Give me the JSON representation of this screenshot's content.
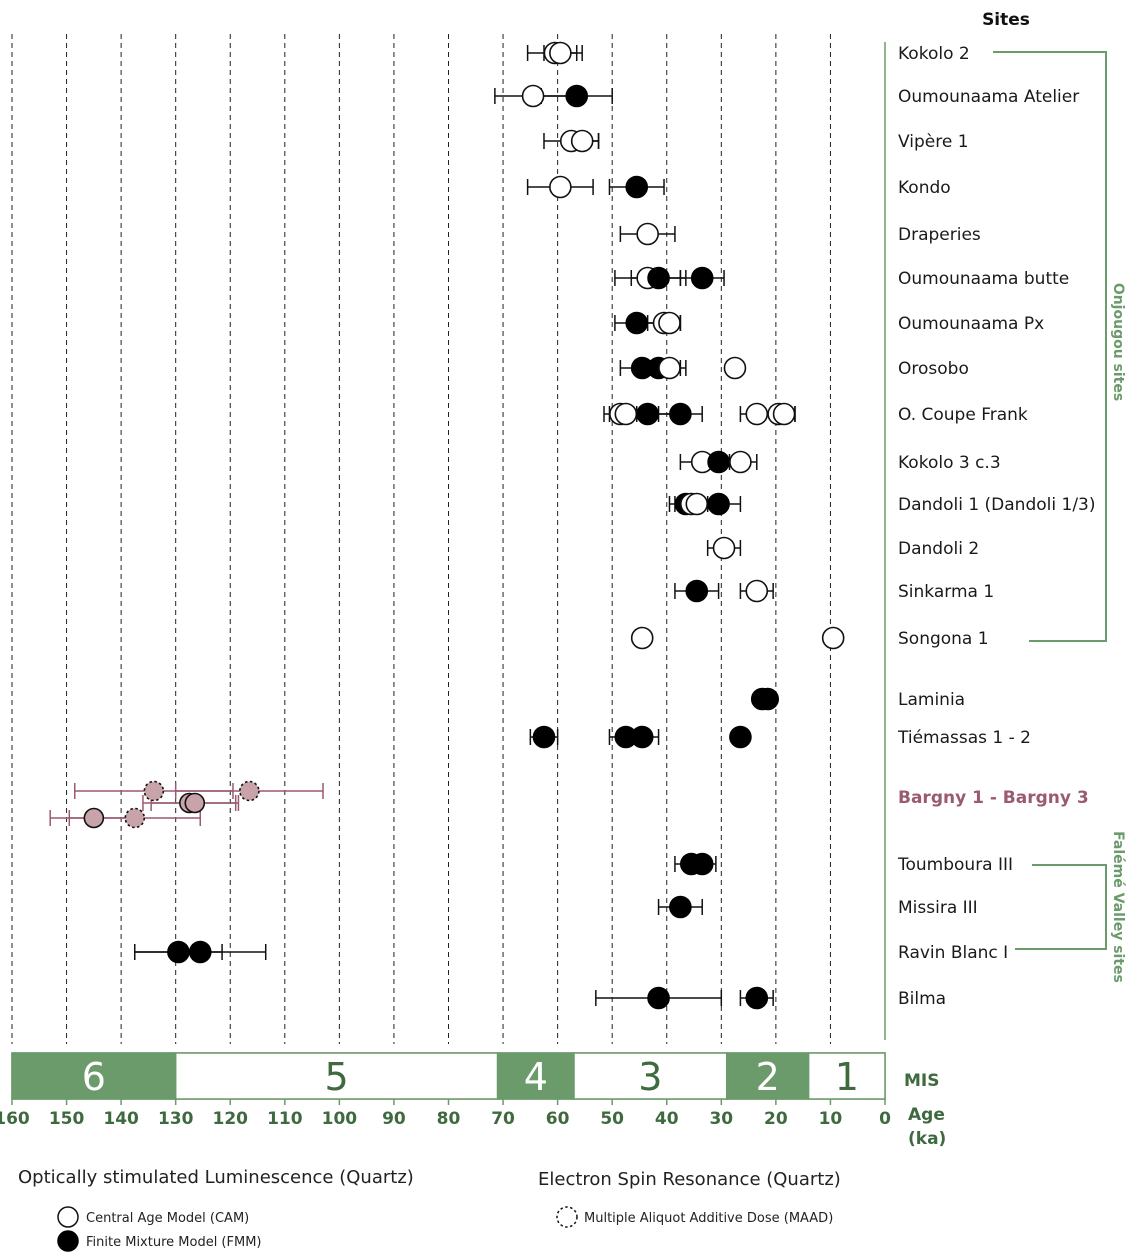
{
  "header": {
    "sites": "Sites"
  },
  "axis": {
    "mis_label": "MIS",
    "age_label_line1": "Age",
    "age_label_line2": "(ka)",
    "ticks": [
      "160",
      "150",
      "140",
      "130",
      "120",
      "110",
      "100",
      "90",
      "80",
      "70",
      "60",
      "50",
      "40",
      "30",
      "20",
      "10",
      "0"
    ]
  },
  "groups": {
    "onjougou": "Onjougou sites",
    "faleme": "Falémé Valley sites"
  },
  "legend": {
    "osl_title": "Optically stimulated Luminescence (Quartz)",
    "esr_title": "Electron Spin Resonance (Quartz)",
    "cam": "Central Age Model (CAM)",
    "fmm": "Finite Mixture Model (FMM)",
    "maad": "Multiple Aliquot Additive Dose (MAAD)"
  },
  "colors": {
    "green": "#6b9a6b",
    "dark_green": "#3f6a3f",
    "bargny": "#9a5a72",
    "bargny_fill": "#c9a3aa"
  },
  "chart_data": {
    "type": "scatter",
    "xlabel": "Age (ka)",
    "xlim": [
      160,
      0
    ],
    "x_reversed": true,
    "grid": "dashed vertical every 10 ka",
    "mis_stages": [
      {
        "label": "6",
        "from": 160,
        "to": 130,
        "shaded": true
      },
      {
        "label": "5",
        "from": 130,
        "to": 71,
        "shaded": false
      },
      {
        "label": "4",
        "from": 71,
        "to": 57,
        "shaded": true
      },
      {
        "label": "3",
        "from": 57,
        "to": 29,
        "shaded": false
      },
      {
        "label": "2",
        "from": 29,
        "to": 14,
        "shaded": true
      },
      {
        "label": "1",
        "from": 14,
        "to": 0,
        "shaded": false
      }
    ],
    "sites": [
      {
        "name": "Kokolo 2",
        "group": "onjougou",
        "points": [
          {
            "age": 60.5,
            "err": 5,
            "model": "CAM"
          },
          {
            "age": 59.5,
            "err": 3,
            "model": "CAM"
          }
        ]
      },
      {
        "name": "Oumounaama Atelier",
        "group": "onjougou",
        "points": [
          {
            "age": 64.5,
            "err": 7,
            "model": "CAM"
          },
          {
            "age": 56.5,
            "err": 6.5,
            "model": "FMM"
          }
        ]
      },
      {
        "name": "Vipère 1",
        "group": "onjougou",
        "points": [
          {
            "age": 57.5,
            "err": 5,
            "model": "CAM"
          },
          {
            "age": 55.5,
            "err": 3,
            "model": "CAM"
          }
        ]
      },
      {
        "name": "Kondo",
        "group": "onjougou",
        "points": [
          {
            "age": 59.5,
            "err": 6,
            "model": "CAM"
          },
          {
            "age": 45.5,
            "err": 5,
            "model": "FMM"
          }
        ]
      },
      {
        "name": "Draperies",
        "group": "onjougou",
        "points": [
          {
            "age": 43.5,
            "err": 5,
            "model": "CAM"
          }
        ]
      },
      {
        "name": "Oumounaama butte",
        "group": "onjougou",
        "points": [
          {
            "age": 43.5,
            "err": 6,
            "model": "CAM"
          },
          {
            "age": 41.5,
            "err": 5,
            "model": "FMM"
          },
          {
            "age": 33.5,
            "err": 4,
            "model": "FMM"
          }
        ]
      },
      {
        "name": "Oumounaama Px",
        "group": "onjougou",
        "points": [
          {
            "age": 45.5,
            "err": 4,
            "model": "FMM"
          },
          {
            "age": 40.5,
            "err": 3,
            "model": "CAM"
          },
          {
            "age": 39.5,
            "err": 2,
            "model": "CAM"
          }
        ]
      },
      {
        "name": "Orosobo",
        "group": "onjougou",
        "points": [
          {
            "age": 44.5,
            "err": 4,
            "model": "FMM"
          },
          {
            "age": 41.5,
            "err": 4,
            "model": "FMM"
          },
          {
            "age": 39.5,
            "err": 3,
            "model": "CAM"
          },
          {
            "age": 27.5,
            "err": 0,
            "model": "CAM"
          }
        ]
      },
      {
        "name": "O. Coupe Frank",
        "group": "onjougou",
        "points": [
          {
            "age": 48.5,
            "err": 3,
            "model": "CAM"
          },
          {
            "age": 47.5,
            "err": 3,
            "model": "CAM"
          },
          {
            "age": 43.5,
            "err": 5,
            "model": "FMM"
          },
          {
            "age": 37.5,
            "err": 4,
            "model": "FMM"
          },
          {
            "age": 23.5,
            "err": 3,
            "model": "CAM"
          },
          {
            "age": 19.5,
            "err": 3,
            "model": "CAM"
          },
          {
            "age": 18.5,
            "err": 2,
            "model": "CAM"
          }
        ]
      },
      {
        "name": "Kokolo 3 c.3",
        "group": "onjougou",
        "points": [
          {
            "age": 33.5,
            "err": 4,
            "model": "CAM"
          },
          {
            "age": 30.5,
            "err": 2,
            "model": "FMM"
          },
          {
            "age": 26.5,
            "err": 3,
            "model": "CAM"
          }
        ]
      },
      {
        "name": "Dandoli 1 (Dandoli 1/3)",
        "group": "onjougou",
        "points": [
          {
            "age": 36.5,
            "err": 3,
            "model": "FMM"
          },
          {
            "age": 35.5,
            "err": 3,
            "model": "CAM"
          },
          {
            "age": 34.5,
            "err": 3,
            "model": "CAM"
          },
          {
            "age": 30.5,
            "err": 4,
            "model": "FMM"
          }
        ]
      },
      {
        "name": "Dandoli 2",
        "group": "onjougou",
        "points": [
          {
            "age": 29.5,
            "err": 3,
            "model": "CAM"
          }
        ]
      },
      {
        "name": "Sinkarma 1",
        "group": "onjougou",
        "points": [
          {
            "age": 34.5,
            "err": 4,
            "model": "FMM"
          },
          {
            "age": 23.5,
            "err": 3,
            "model": "CAM"
          }
        ]
      },
      {
        "name": "Songona 1",
        "group": "onjougou",
        "points": [
          {
            "age": 44.5,
            "err": 0,
            "model": "CAM"
          },
          {
            "age": 9.5,
            "err": 0,
            "model": "CAM"
          }
        ]
      },
      {
        "name": "Laminia",
        "group": "",
        "points": [
          {
            "age": 22.5,
            "err": 0,
            "model": "FMM"
          },
          {
            "age": 21.5,
            "err": 0,
            "model": "FMM"
          }
        ]
      },
      {
        "name": "Tiémassas 1 - 2",
        "group": "",
        "points": [
          {
            "age": 62.5,
            "err": 2.5,
            "model": "FMM"
          },
          {
            "age": 47.5,
            "err": 3,
            "model": "FMM"
          },
          {
            "age": 44.5,
            "err": 3,
            "model": "FMM"
          },
          {
            "age": 26.5,
            "err": 0,
            "model": "FMM"
          }
        ]
      },
      {
        "name": "Bargny 1 - Bargny 3",
        "group": "bargny",
        "points": [
          {
            "age": 134,
            "err": 14.5,
            "model": "MAAD",
            "row": 0
          },
          {
            "age": 116.5,
            "err": 13.5,
            "model": "MAAD",
            "row": 0
          },
          {
            "age": 127.5,
            "err": 8.5,
            "model": "CAM",
            "row": 1
          },
          {
            "age": 126.5,
            "err": 8,
            "model": "CAM",
            "row": 1
          },
          {
            "age": 145,
            "err": 8,
            "model": "CAM",
            "row": 2
          },
          {
            "age": 137.5,
            "err": 12,
            "model": "MAAD",
            "row": 2
          }
        ]
      },
      {
        "name": "Toumboura III",
        "group": "faleme",
        "points": [
          {
            "age": 35.5,
            "err": 3,
            "model": "FMM"
          },
          {
            "age": 33.5,
            "err": 2.5,
            "model": "FMM"
          }
        ]
      },
      {
        "name": "Missira III",
        "group": "faleme",
        "points": [
          {
            "age": 37.5,
            "err": 4,
            "model": "FMM"
          }
        ]
      },
      {
        "name": "Ravin Blanc I",
        "group": "faleme",
        "points": [
          {
            "age": 129.5,
            "err": 8,
            "model": "FMM"
          },
          {
            "age": 125.5,
            "err": 12,
            "model": "FMM"
          }
        ]
      },
      {
        "name": "Bilma",
        "group": "",
        "points": [
          {
            "age": 41.5,
            "err": 11.5,
            "model": "FMM"
          },
          {
            "age": 23.5,
            "err": 3,
            "model": "FMM"
          }
        ]
      }
    ]
  }
}
